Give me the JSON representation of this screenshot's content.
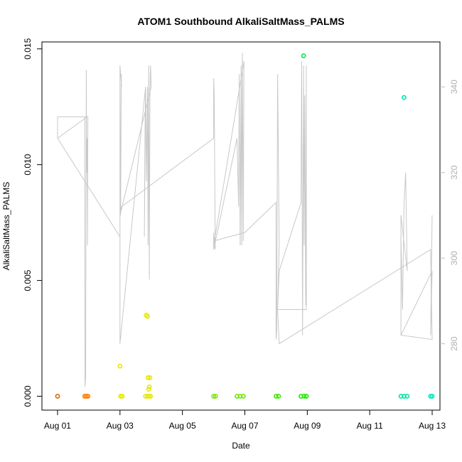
{
  "chart_data": {
    "type": "scatter",
    "title": "ATOM1 Southbound AlkaliSaltMass_PALMS",
    "xlabel": "Date",
    "ylabel": "AlkaliSaltMass_PALMS",
    "x_ticks": [
      "Aug 01",
      "Aug 03",
      "Aug 05",
      "Aug 07",
      "Aug 09",
      "Aug 11",
      "Aug 13"
    ],
    "x_tick_days": [
      1,
      3,
      5,
      7,
      9,
      11,
      13
    ],
    "xlim_days": [
      0.5,
      13.25
    ],
    "ylim": [
      -0.0006,
      0.0153
    ],
    "y_ticks": [
      0.0,
      0.005,
      0.01,
      0.015
    ],
    "y_tick_labels": [
      "0.000",
      "0.005",
      "0.010",
      "0.015"
    ],
    "y2_ticks": [
      280,
      300,
      320,
      340
    ],
    "y2lim": [
      264.5,
      350.5
    ],
    "y2_color": "#bdbdbd",
    "grid": false,
    "points": [
      {
        "x": 1.0,
        "y": 0.0,
        "color": "#dd6600"
      },
      {
        "x": 1.87,
        "y": 0.0,
        "color": "#ff7a00"
      },
      {
        "x": 1.92,
        "y": 0.0,
        "color": "#ff7a00"
      },
      {
        "x": 1.97,
        "y": 0.0,
        "color": "#ff7a00"
      },
      {
        "x": 3.0,
        "y": 0.0013,
        "color": "#e6e600"
      },
      {
        "x": 3.02,
        "y": 0.0,
        "color": "#e6e600"
      },
      {
        "x": 3.07,
        "y": 0.0,
        "color": "#e6e600"
      },
      {
        "x": 3.82,
        "y": 0.0,
        "color": "#e6e600"
      },
      {
        "x": 3.88,
        "y": 0.0,
        "color": "#e6e600"
      },
      {
        "x": 3.93,
        "y": 0.0,
        "color": "#e6e600"
      },
      {
        "x": 3.98,
        "y": 0.0,
        "color": "#e6e600"
      },
      {
        "x": 3.84,
        "y": 0.0035,
        "color": "#e6e600"
      },
      {
        "x": 3.88,
        "y": 0.00345,
        "color": "#e6e600"
      },
      {
        "x": 3.9,
        "y": 0.0008,
        "color": "#e6e600"
      },
      {
        "x": 3.96,
        "y": 0.0008,
        "color": "#e6e600"
      },
      {
        "x": 3.94,
        "y": 0.0004,
        "color": "#e6e600"
      },
      {
        "x": 3.92,
        "y": 0.0003,
        "color": "#e6e600"
      },
      {
        "x": 6.0,
        "y": 0.0,
        "color": "#7be600"
      },
      {
        "x": 6.06,
        "y": 0.0,
        "color": "#7be600"
      },
      {
        "x": 6.75,
        "y": 0.0,
        "color": "#6ee600"
      },
      {
        "x": 6.85,
        "y": 0.0,
        "color": "#6ee600"
      },
      {
        "x": 6.95,
        "y": 0.0,
        "color": "#6ee600"
      },
      {
        "x": 8.0,
        "y": 0.0,
        "color": "#3de600"
      },
      {
        "x": 8.08,
        "y": 0.0,
        "color": "#3de600"
      },
      {
        "x": 8.8,
        "y": 0.0,
        "color": "#1ee600"
      },
      {
        "x": 8.9,
        "y": 0.0,
        "color": "#1ee600"
      },
      {
        "x": 8.97,
        "y": 0.0,
        "color": "#1ee600"
      },
      {
        "x": 8.88,
        "y": 0.0147,
        "color": "#00e64d"
      },
      {
        "x": 12.0,
        "y": 0.0,
        "color": "#00e6a0"
      },
      {
        "x": 12.1,
        "y": 0.0,
        "color": "#00e6a0"
      },
      {
        "x": 12.2,
        "y": 0.0,
        "color": "#00e6a0"
      },
      {
        "x": 12.1,
        "y": 0.0129,
        "color": "#00e6b0"
      },
      {
        "x": 12.95,
        "y": 0.0,
        "color": "#00e6c0"
      },
      {
        "x": 13.0,
        "y": 0.0,
        "color": "#00e6c0"
      }
    ],
    "altitude_line": {
      "color": "#c8c8c8",
      "axis": "y2",
      "x": [
        1.0,
        1.0,
        1.95,
        1.87,
        1.88,
        1.9,
        1.92,
        1.93,
        1.95,
        1.96,
        1.97,
        1.0,
        1.0,
        3.0,
        3.0,
        3.02,
        3.04,
        3.05,
        3.0,
        3.0,
        3.82,
        3.8,
        3.78,
        3.82,
        3.85,
        3.88,
        3.9,
        3.92,
        3.94,
        3.96,
        3.98,
        4.0,
        3.0,
        3.05,
        6.0,
        6.0,
        6.02,
        6.05,
        6.0,
        6.0,
        6.75,
        6.8,
        6.82,
        6.85,
        6.88,
        6.9,
        6.92,
        6.95,
        6.97,
        6.0,
        6.0,
        7.0,
        8.0,
        8.0,
        8.02,
        8.05,
        8.1,
        8.05,
        8.1,
        8.8,
        8.82,
        8.85,
        8.88,
        8.9,
        8.92,
        8.95,
        8.97,
        8.97,
        8.05,
        8.1,
        12.95,
        13.0,
        12.0,
        12.0,
        12.05,
        12.1,
        12.15,
        12.2,
        12.0,
        12.0,
        13.0,
        12.95,
        13.0
      ],
      "y": [
        333,
        328,
        333,
        333,
        270,
        272,
        344,
        320,
        328,
        303,
        333,
        333,
        328,
        305,
        343,
        310,
        343,
        340,
        345,
        280,
        340,
        328,
        305,
        340,
        318,
        340,
        303,
        345,
        295,
        340,
        345,
        340,
        310,
        312,
        328,
        342,
        338,
        302,
        306,
        302,
        328,
        312,
        343,
        303,
        345,
        303,
        348,
        304,
        346,
        303,
        304,
        306,
        313,
        281,
        283,
        343,
        303,
        288,
        297,
        313,
        346,
        282,
        345,
        303,
        338,
        289,
        345,
        288,
        288,
        280,
        302,
        281,
        282,
        305,
        288,
        313,
        320,
        297,
        310,
        282,
        297,
        282,
        310
      ]
    }
  }
}
